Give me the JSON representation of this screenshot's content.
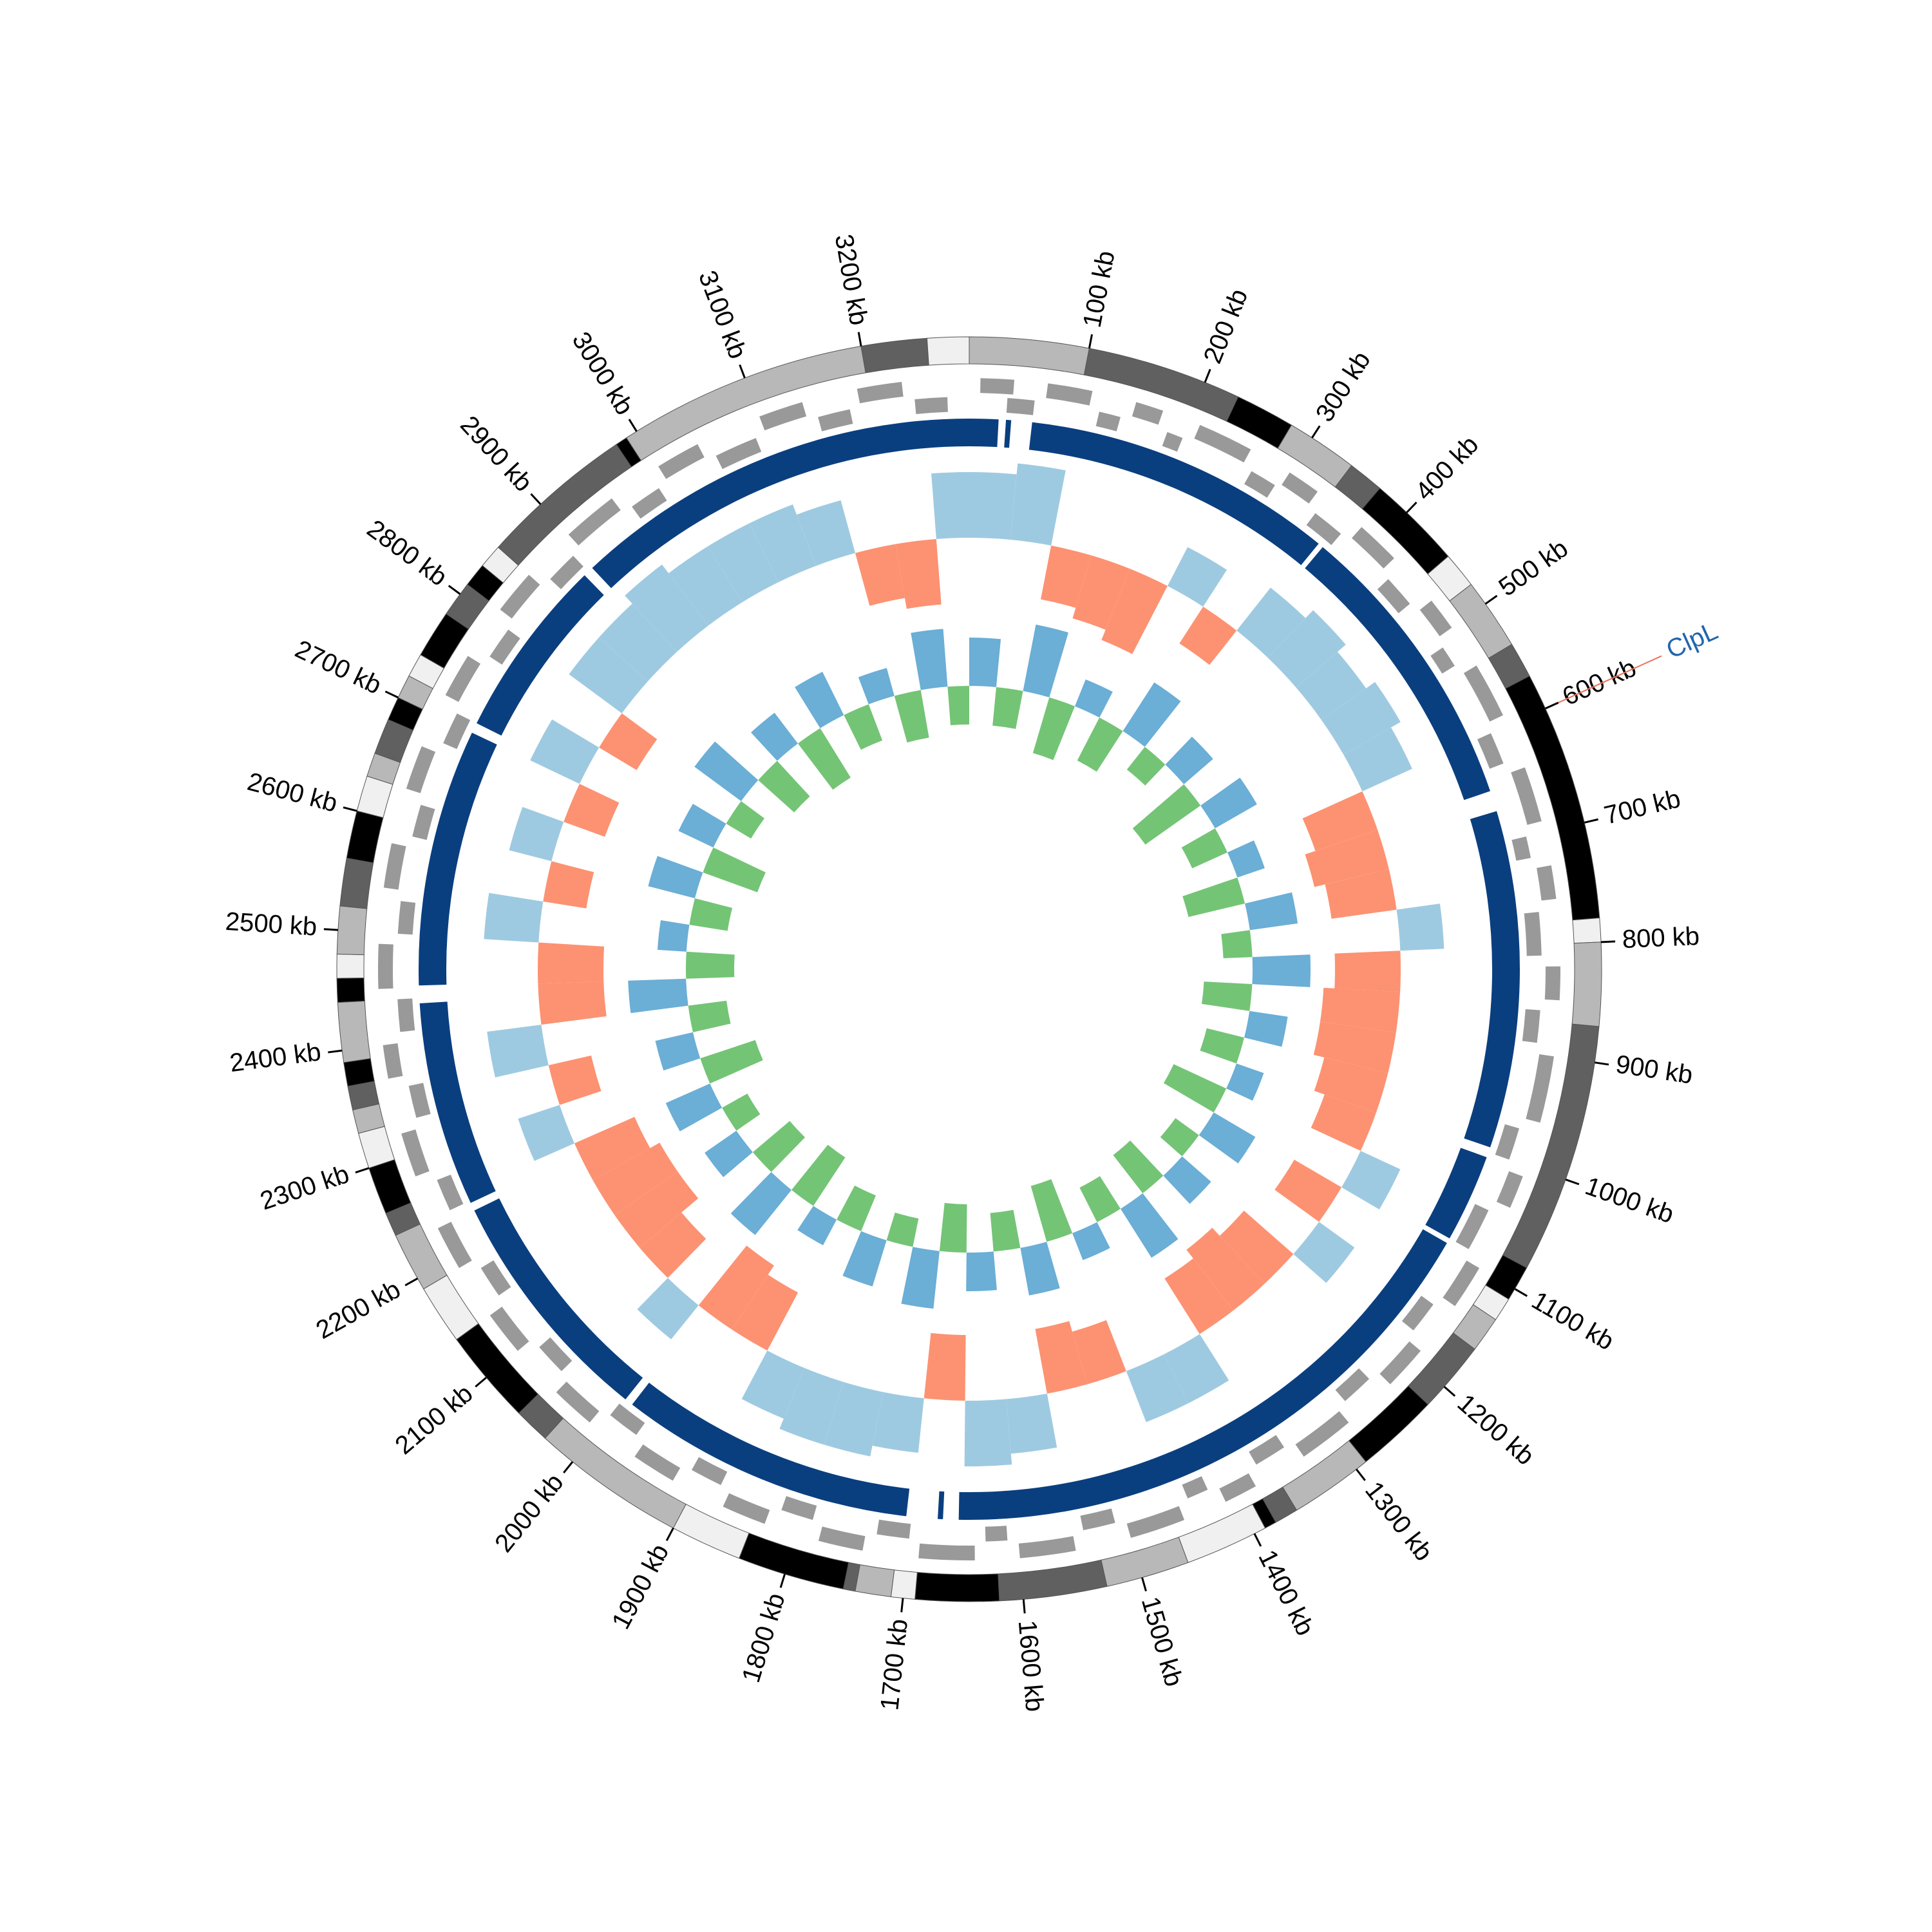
{
  "chart_data": {
    "type": "circos",
    "xlim": [
      0,
      3290
    ],
    "xticks": [
      {
        "value": 100,
        "label": "100 kb"
      },
      {
        "value": 200,
        "label": "200 kb"
      },
      {
        "value": 300,
        "label": "300 kb"
      },
      {
        "value": 400,
        "label": "400 kb"
      },
      {
        "value": 500,
        "label": "500 kb"
      },
      {
        "value": 600,
        "label": "600 kb"
      },
      {
        "value": 700,
        "label": "700 kb"
      },
      {
        "value": 800,
        "label": "800 kb"
      },
      {
        "value": 900,
        "label": "900 kb"
      },
      {
        "value": 1000,
        "label": "1000 kb"
      },
      {
        "value": 1100,
        "label": "1100 kb"
      },
      {
        "value": 1200,
        "label": "1200 kb"
      },
      {
        "value": 1300,
        "label": "1300 kb"
      },
      {
        "value": 1400,
        "label": "1400 kb"
      },
      {
        "value": 1500,
        "label": "1500 kb"
      },
      {
        "value": 1600,
        "label": "1600 kb"
      },
      {
        "value": 1700,
        "label": "1700 kb"
      },
      {
        "value": 1800,
        "label": "1800 kb"
      },
      {
        "value": 1900,
        "label": "1900 kb"
      },
      {
        "value": 2000,
        "label": "2000 kb"
      },
      {
        "value": 2100,
        "label": "2100 kb"
      },
      {
        "value": 2200,
        "label": "2200 kb"
      },
      {
        "value": 2300,
        "label": "2300 kb"
      },
      {
        "value": 2400,
        "label": "2400 kb"
      },
      {
        "value": 2500,
        "label": "2500 kb"
      },
      {
        "value": 2600,
        "label": "2600 kb"
      },
      {
        "value": 2700,
        "label": "2700 kb"
      },
      {
        "value": 2800,
        "label": "2800 kb"
      },
      {
        "value": 2900,
        "label": "2900 kb"
      },
      {
        "value": 3000,
        "label": "3000 kb"
      },
      {
        "value": 3100,
        "label": "3100 kb"
      },
      {
        "value": 3200,
        "label": "3200 kb"
      }
    ],
    "bands": [
      {
        "start": 0,
        "end": 100,
        "color": "#b8b8b8"
      },
      {
        "start": 100,
        "end": 230,
        "color": "#606060"
      },
      {
        "start": 230,
        "end": 280,
        "color": "#000000"
      },
      {
        "start": 280,
        "end": 340,
        "color": "#b8b8b8"
      },
      {
        "start": 340,
        "end": 370,
        "color": "#606060"
      },
      {
        "start": 370,
        "end": 450,
        "color": "#000000"
      },
      {
        "start": 450,
        "end": 480,
        "color": "#f0f0f0"
      },
      {
        "start": 480,
        "end": 540,
        "color": "#b8b8b8"
      },
      {
        "start": 540,
        "end": 570,
        "color": "#606060"
      },
      {
        "start": 570,
        "end": 780,
        "color": "#000000"
      },
      {
        "start": 780,
        "end": 800,
        "color": "#f0f0f0"
      },
      {
        "start": 800,
        "end": 870,
        "color": "#b8b8b8"
      },
      {
        "start": 870,
        "end": 1080,
        "color": "#606060"
      },
      {
        "start": 1080,
        "end": 1110,
        "color": "#000000"
      },
      {
        "start": 1110,
        "end": 1130,
        "color": "#f0f0f0"
      },
      {
        "start": 1130,
        "end": 1160,
        "color": "#b8b8b8"
      },
      {
        "start": 1160,
        "end": 1220,
        "color": "#606060"
      },
      {
        "start": 1220,
        "end": 1290,
        "color": "#000000"
      },
      {
        "start": 1290,
        "end": 1360,
        "color": "#b8b8b8"
      },
      {
        "start": 1360,
        "end": 1380,
        "color": "#606060"
      },
      {
        "start": 1380,
        "end": 1390,
        "color": "#000000"
      },
      {
        "start": 1390,
        "end": 1460,
        "color": "#f0f0f0"
      },
      {
        "start": 1460,
        "end": 1530,
        "color": "#b8b8b8"
      },
      {
        "start": 1530,
        "end": 1620,
        "color": "#606060"
      },
      {
        "start": 1620,
        "end": 1690,
        "color": "#000000"
      },
      {
        "start": 1690,
        "end": 1710,
        "color": "#f0f0f0"
      },
      {
        "start": 1710,
        "end": 1740,
        "color": "#b8b8b8"
      },
      {
        "start": 1740,
        "end": 1750,
        "color": "#606060"
      },
      {
        "start": 1750,
        "end": 1840,
        "color": "#000000"
      },
      {
        "start": 1840,
        "end": 1900,
        "color": "#f0f0f0"
      },
      {
        "start": 1900,
        "end": 2030,
        "color": "#b8b8b8"
      },
      {
        "start": 2030,
        "end": 2060,
        "color": "#606060"
      },
      {
        "start": 2060,
        "end": 2140,
        "color": "#000000"
      },
      {
        "start": 2140,
        "end": 2190,
        "color": "#f0f0f0"
      },
      {
        "start": 2190,
        "end": 2240,
        "color": "#b8b8b8"
      },
      {
        "start": 2240,
        "end": 2260,
        "color": "#606060"
      },
      {
        "start": 2260,
        "end": 2300,
        "color": "#000000"
      },
      {
        "start": 2300,
        "end": 2330,
        "color": "#f0f0f0"
      },
      {
        "start": 2330,
        "end": 2350,
        "color": "#b8b8b8"
      },
      {
        "start": 2350,
        "end": 2370,
        "color": "#606060"
      },
      {
        "start": 2370,
        "end": 2390,
        "color": "#000000"
      },
      {
        "start": 2390,
        "end": 2440,
        "color": "#b8b8b8"
      },
      {
        "start": 2440,
        "end": 2460,
        "color": "#000000"
      },
      {
        "start": 2460,
        "end": 2480,
        "color": "#f0f0f0"
      },
      {
        "start": 2480,
        "end": 2520,
        "color": "#b8b8b8"
      },
      {
        "start": 2520,
        "end": 2560,
        "color": "#606060"
      },
      {
        "start": 2560,
        "end": 2600,
        "color": "#000000"
      },
      {
        "start": 2600,
        "end": 2630,
        "color": "#f0f0f0"
      },
      {
        "start": 2630,
        "end": 2650,
        "color": "#b8b8b8"
      },
      {
        "start": 2650,
        "end": 2680,
        "color": "#606060"
      },
      {
        "start": 2680,
        "end": 2700,
        "color": "#000000"
      },
      {
        "start": 2700,
        "end": 2720,
        "color": "#b8b8b8"
      },
      {
        "start": 2720,
        "end": 2740,
        "color": "#f0f0f0"
      },
      {
        "start": 2740,
        "end": 2780,
        "color": "#000000"
      },
      {
        "start": 2780,
        "end": 2810,
        "color": "#606060"
      },
      {
        "start": 2810,
        "end": 2830,
        "color": "#000000"
      },
      {
        "start": 2830,
        "end": 2850,
        "color": "#f0f0f0"
      },
      {
        "start": 2850,
        "end": 2980,
        "color": "#606060"
      },
      {
        "start": 2980,
        "end": 2990,
        "color": "#000000"
      },
      {
        "start": 2990,
        "end": 3200,
        "color": "#b8b8b8"
      },
      {
        "start": 3200,
        "end": 3255,
        "color": "#606060"
      },
      {
        "start": 3255,
        "end": 3290,
        "color": "#f0f0f0"
      }
    ],
    "genes_plus": [
      [
        10,
        40
      ],
      [
        70,
        110
      ],
      [
        150,
        175
      ],
      [
        210,
        260
      ],
      [
        300,
        330
      ],
      [
        380,
        420
      ],
      [
        470,
        500
      ],
      [
        540,
        590
      ],
      [
        640,
        690
      ],
      [
        730,
        760
      ],
      [
        820,
        850
      ],
      [
        900,
        960
      ],
      [
        1010,
        1040
      ],
      [
        1100,
        1140
      ],
      [
        1190,
        1230
      ],
      [
        1280,
        1330
      ],
      [
        1380,
        1410
      ],
      [
        1450,
        1500
      ],
      [
        1550,
        1600
      ],
      [
        1640,
        1690
      ],
      [
        1740,
        1780
      ],
      [
        1830,
        1870
      ],
      [
        1920,
        1960
      ],
      [
        2010,
        2050
      ],
      [
        2100,
        2140
      ],
      [
        2190,
        2230
      ],
      [
        2280,
        2320
      ],
      [
        2370,
        2400
      ],
      [
        2450,
        2490
      ],
      [
        2540,
        2580
      ],
      [
        2630,
        2670
      ],
      [
        2720,
        2760
      ],
      [
        2810,
        2850
      ],
      [
        2900,
        2950
      ],
      [
        3000,
        3040
      ],
      [
        3100,
        3140
      ],
      [
        3190,
        3230
      ]
    ],
    "genes_minus": [
      [
        35,
        60
      ],
      [
        120,
        140
      ],
      [
        185,
        200
      ],
      [
        270,
        295
      ],
      [
        340,
        370
      ],
      [
        430,
        460
      ],
      [
        510,
        530
      ],
      [
        600,
        630
      ],
      [
        700,
        720
      ],
      [
        770,
        810
      ],
      [
        860,
        890
      ],
      [
        970,
        1000
      ],
      [
        1050,
        1090
      ],
      [
        1150,
        1180
      ],
      [
        1240,
        1270
      ],
      [
        1340,
        1370
      ],
      [
        1420,
        1440
      ],
      [
        1510,
        1540
      ],
      [
        1610,
        1630
      ],
      [
        1700,
        1730
      ],
      [
        1790,
        1820
      ],
      [
        1880,
        1910
      ],
      [
        1970,
        2000
      ],
      [
        2060,
        2090
      ],
      [
        2150,
        2180
      ],
      [
        2240,
        2270
      ],
      [
        2330,
        2360
      ],
      [
        2410,
        2440
      ],
      [
        2500,
        2530
      ],
      [
        2590,
        2620
      ],
      [
        2680,
        2710
      ],
      [
        2770,
        2800
      ],
      [
        2860,
        2890
      ],
      [
        2960,
        2990
      ],
      [
        3050,
        3090
      ],
      [
        3150,
        3180
      ],
      [
        3240,
        3270
      ]
    ],
    "gene_color": "#999999",
    "contigs": [
      [
        0,
        28
      ],
      [
        35,
        40
      ],
      [
        60,
        360
      ],
      [
        365,
        650
      ],
      [
        670,
        995
      ],
      [
        1005,
        1090
      ],
      [
        1095,
        1655
      ],
      [
        1670,
        1675
      ],
      [
        1705,
        1990
      ],
      [
        1998,
        2230
      ],
      [
        2238,
        2435
      ],
      [
        2452,
        2700
      ],
      [
        2710,
        2885
      ],
      [
        2895,
        3290
      ]
    ],
    "contig_color": "#0a3f7f",
    "x": [
      0,
      50,
      100,
      150,
      200,
      250,
      300,
      350,
      400,
      450,
      500,
      550,
      600,
      650,
      700,
      750,
      800,
      850,
      900,
      950,
      1000,
      1050,
      1100,
      1150,
      1200,
      1250,
      1300,
      1350,
      1400,
      1450,
      1500,
      1550,
      1600,
      1650,
      1700,
      1750,
      1800,
      1850,
      1900,
      1950,
      2000,
      2050,
      2100,
      2150,
      2200,
      2250,
      2300,
      2350,
      2400,
      2450,
      2500,
      2550,
      2600,
      2650,
      2700,
      2750,
      2800,
      2850,
      2900,
      2950,
      3000,
      3050,
      3100,
      3150,
      3200,
      3250
    ],
    "gc_skew": {
      "colors": [
        "#9ecae1",
        "#fc9272"
      ],
      "values": [
        0.6,
        0.7,
        -0.5,
        -0.6,
        -0.7,
        0.4,
        -0.4,
        0.5,
        0.6,
        0.5,
        0.6,
        0.5,
        -0.6,
        -0.7,
        -0.6,
        0.4,
        -0.6,
        -0.7,
        -0.7,
        -0.6,
        -0.5,
        0.4,
        -0.5,
        0.4,
        -0.6,
        -0.7,
        -0.6,
        0.5,
        0.5,
        -0.5,
        -0.6,
        0.5,
        0.6,
        -0.6,
        0.5,
        0.6,
        0.6,
        0.5,
        -0.6,
        -0.7,
        0.4,
        -0.5,
        -0.7,
        -0.7,
        -0.6,
        0.4,
        -0.4,
        0.5,
        -0.6,
        -0.6,
        0.5,
        -0.4,
        0.4,
        -0.4,
        0.5,
        -0.4,
        0.6,
        0.6,
        0.7,
        0.6,
        0.6,
        0.6,
        0.5,
        -0.5,
        -0.6,
        0.6
      ]
    },
    "gc_content": {
      "colors": [
        "#6baed6",
        "#74c476"
      ],
      "values": [
        0.5,
        -0.4,
        0.7,
        -0.6,
        0.3,
        -0.5,
        0.6,
        -0.3,
        0.4,
        -0.7,
        0.5,
        -0.4,
        0.3,
        -0.6,
        0.5,
        -0.3,
        0.6,
        -0.5,
        0.4,
        -0.4,
        0.3,
        -0.6,
        0.5,
        -0.3,
        0.4,
        -0.5,
        0.6,
        -0.4,
        0.3,
        -0.6,
        0.5,
        -0.4,
        0.4,
        -0.5,
        0.6,
        -0.3,
        0.5,
        -0.4,
        0.3,
        -0.6,
        0.6,
        -0.5,
        0.4,
        -0.3,
        0.5,
        -0.6,
        0.4,
        -0.4,
        0.6,
        -0.5,
        0.3,
        -0.4,
        0.5,
        -0.6,
        0.4,
        -0.3,
        0.6,
        -0.5,
        0.4,
        -0.6,
        0.5,
        -0.4,
        0.3,
        -0.5,
        0.6,
        -0.4
      ]
    },
    "annotation": {
      "label": "ClpL",
      "position": 600,
      "color": "#2166ac",
      "line_color": "#e8735a"
    }
  }
}
